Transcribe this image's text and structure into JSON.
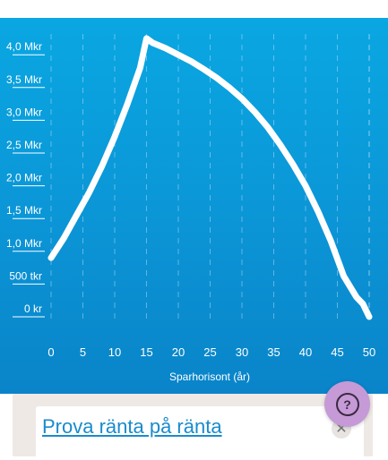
{
  "chart_data": {
    "type": "line",
    "xlabel": "Sparhorisont (år)",
    "x_ticks": [
      "0",
      "5",
      "10",
      "15",
      "20",
      "25",
      "30",
      "35",
      "40",
      "45",
      "50"
    ],
    "y_ticks": [
      "0 kr",
      "500 tkr",
      "1,0 Mkr",
      "1,5 Mkr",
      "2,0 Mkr",
      "2,5 Mkr",
      "3,0 Mkr",
      "3,5 Mkr",
      "4,0 Mkr"
    ],
    "ylim": [
      0,
      4.25
    ],
    "xlim": [
      0,
      50
    ],
    "grid": true,
    "line_color": "#ffffff",
    "series": [
      {
        "x": [
          0,
          2,
          4,
          6,
          8,
          10,
          12,
          14,
          15,
          16,
          18,
          20,
          22,
          24,
          26,
          28,
          30,
          32,
          34,
          36,
          38,
          40,
          42,
          44,
          46,
          48,
          49,
          50
        ],
        "values": [
          0.9,
          1.2,
          1.55,
          1.9,
          2.3,
          2.75,
          3.25,
          3.8,
          4.25,
          4.18,
          4.1,
          4.0,
          3.9,
          3.78,
          3.65,
          3.5,
          3.33,
          3.13,
          2.9,
          2.63,
          2.33,
          2.0,
          1.6,
          1.15,
          0.62,
          0.3,
          0.2,
          0.0
        ]
      }
    ]
  },
  "card": {
    "link_text": "Prova ränta på ränta",
    "close_symbol": "✕"
  },
  "help": {
    "symbol": "?"
  },
  "colors": {
    "panel_top": "#0aa7e2",
    "panel_bottom": "#0a84c9",
    "help_bg": "#c59ad6",
    "link": "#1a8bcc"
  }
}
